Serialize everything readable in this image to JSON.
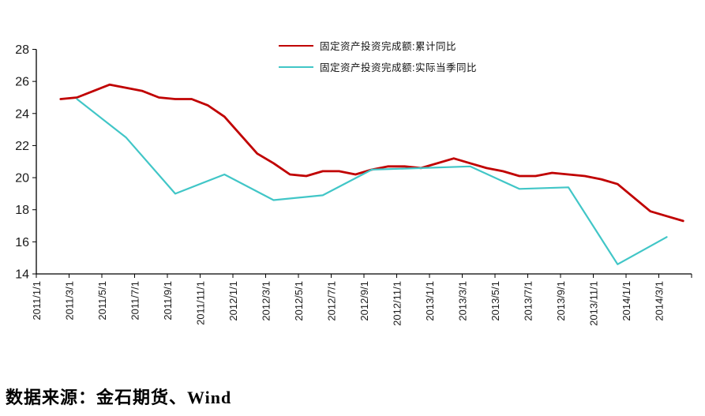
{
  "footer": {
    "source_label": "数据来源：金石期货、Wind"
  },
  "colors": {
    "axis": "#000000",
    "red_series": "#C00000",
    "cyan_series": "#41C6C7"
  },
  "chart_data": {
    "type": "line",
    "title": "",
    "xlabel": "",
    "ylabel": "",
    "ylim": [
      14,
      28
    ],
    "y_ticks": [
      28,
      26,
      24,
      22,
      20,
      18,
      16,
      14
    ],
    "grid": false,
    "legend_position": "top-center",
    "x_ticks": [
      "2011/1/1",
      "2011/3/1",
      "2011/5/1",
      "2011/7/1",
      "2011/9/1",
      "2011/11/1",
      "2012/1/1",
      "2012/3/1",
      "2012/5/1",
      "2012/7/1",
      "2012/9/1",
      "2012/11/1",
      "2013/1/1",
      "2013/3/1",
      "2013/5/1",
      "2013/7/1",
      "2013/9/1",
      "2013/11/1",
      "2014/1/1",
      "2014/3/1"
    ],
    "series": [
      {
        "name": "固定资产投资完成额:累计同比",
        "color": "#C00000",
        "stroke_width": 2.8,
        "points": [
          [
            "2011/2",
            24.9
          ],
          [
            "2011/3",
            25.0
          ],
          [
            "2011/4",
            25.4
          ],
          [
            "2011/5",
            25.8
          ],
          [
            "2011/6",
            25.6
          ],
          [
            "2011/7",
            25.4
          ],
          [
            "2011/8",
            25.0
          ],
          [
            "2011/9",
            24.9
          ],
          [
            "2011/10",
            24.9
          ],
          [
            "2011/11",
            24.5
          ],
          [
            "2011/12",
            23.8
          ],
          [
            "2012/2",
            21.5
          ],
          [
            "2012/3",
            20.9
          ],
          [
            "2012/4",
            20.2
          ],
          [
            "2012/5",
            20.1
          ],
          [
            "2012/6",
            20.4
          ],
          [
            "2012/7",
            20.4
          ],
          [
            "2012/8",
            20.2
          ],
          [
            "2012/9",
            20.5
          ],
          [
            "2012/10",
            20.7
          ],
          [
            "2012/11",
            20.7
          ],
          [
            "2012/12",
            20.6
          ],
          [
            "2013/2",
            21.2
          ],
          [
            "2013/3",
            20.9
          ],
          [
            "2013/4",
            20.6
          ],
          [
            "2013/5",
            20.4
          ],
          [
            "2013/6",
            20.1
          ],
          [
            "2013/7",
            20.1
          ],
          [
            "2013/8",
            20.3
          ],
          [
            "2013/9",
            20.2
          ],
          [
            "2013/10",
            20.1
          ],
          [
            "2013/11",
            19.9
          ],
          [
            "2013/12",
            19.6
          ],
          [
            "2014/2",
            17.9
          ],
          [
            "2014/3",
            17.6
          ],
          [
            "2014/4",
            17.3
          ]
        ]
      },
      {
        "name": "固定资产投资完成额:实际当季同比",
        "color": "#41C6C7",
        "stroke_width": 2.2,
        "points": [
          [
            "2011/3",
            24.9
          ],
          [
            "2011/6",
            22.5
          ],
          [
            "2011/9",
            19.0
          ],
          [
            "2011/12",
            20.2
          ],
          [
            "2012/3",
            18.6
          ],
          [
            "2012/6",
            18.9
          ],
          [
            "2012/9",
            20.5
          ],
          [
            "2012/12",
            20.6
          ],
          [
            "2013/3",
            20.7
          ],
          [
            "2013/6",
            19.3
          ],
          [
            "2013/9",
            19.4
          ],
          [
            "2013/12",
            14.6
          ],
          [
            "2014/3",
            16.3
          ]
        ]
      }
    ]
  }
}
